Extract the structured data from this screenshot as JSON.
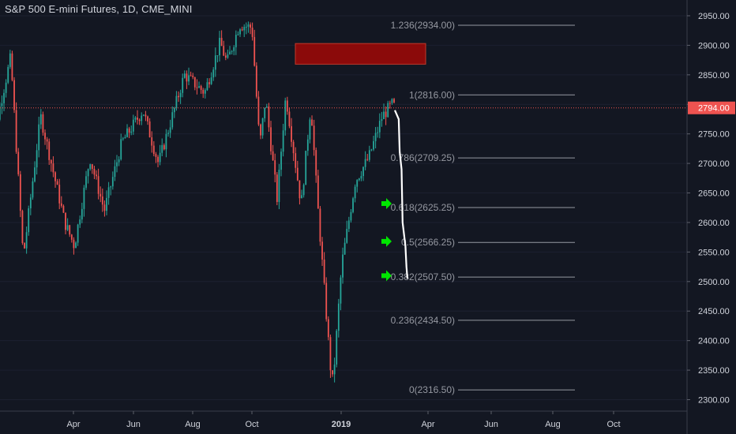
{
  "header": {
    "title": "S&P 500 E-mini Futures, 1D, CME_MINI"
  },
  "colors": {
    "background": "#131722",
    "up": "#26a69a",
    "down": "#ef5350",
    "text": "#d1d4dc",
    "fib_line": "#9598a1",
    "fib_label": "#9598a1",
    "price_line": "#ef5350",
    "target_box": "#8b0a0a",
    "arrow": "#00e600",
    "projection": "#ffffff"
  },
  "chart_data": {
    "type": "candlestick",
    "title": "S&P 500 E-mini Futures, 1D, CME_MINI",
    "x_tick_labels": [
      "Apr",
      "Jun",
      "Aug",
      "Oct",
      "2019",
      "Apr",
      "Jun",
      "Aug",
      "Oct"
    ],
    "y_tick_labels": [
      "2950.00",
      "2900.00",
      "2850.00",
      "2800.00",
      "2750.00",
      "2700.00",
      "2650.00",
      "2600.00",
      "2550.00",
      "2500.00",
      "2450.00",
      "2400.00",
      "2350.00",
      "2300.00"
    ],
    "ylim": [
      2290,
      2965
    ],
    "last_price": 2794.0,
    "last_price_label": "2794.00",
    "price_path": [
      [
        "2018-01-02",
        2700
      ],
      [
        "2018-01-26",
        2880
      ],
      [
        "2018-02-08",
        2540
      ],
      [
        "2018-02-26",
        2780
      ],
      [
        "2018-03-23",
        2600
      ],
      [
        "2018-04-02",
        2560
      ],
      [
        "2018-04-18",
        2710
      ],
      [
        "2018-05-03",
        2620
      ],
      [
        "2018-05-21",
        2735
      ],
      [
        "2018-06-12",
        2790
      ],
      [
        "2018-06-28",
        2700
      ],
      [
        "2018-07-25",
        2850
      ],
      [
        "2018-08-15",
        2820
      ],
      [
        "2018-08-31",
        2905
      ],
      [
        "2018-09-07",
        2870
      ],
      [
        "2018-09-20",
        2935
      ],
      [
        "2018-10-03",
        2930
      ],
      [
        "2018-10-11",
        2730
      ],
      [
        "2018-10-17",
        2810
      ],
      [
        "2018-10-29",
        2640
      ],
      [
        "2018-11-07",
        2815
      ],
      [
        "2018-11-23",
        2630
      ],
      [
        "2018-12-03",
        2800
      ],
      [
        "2018-12-10",
        2630
      ],
      [
        "2018-12-24",
        2340
      ],
      [
        "2018-12-26",
        2330
      ],
      [
        "2019-01-04",
        2530
      ],
      [
        "2019-01-18",
        2670
      ],
      [
        "2019-02-01",
        2710
      ],
      [
        "2019-02-15",
        2780
      ],
      [
        "2019-02-25",
        2800
      ],
      [
        "2019-03-01",
        2794
      ]
    ],
    "fib_levels": [
      {
        "label": "1.236(2934.00)",
        "value": 2934.0
      },
      {
        "label": "1(2816.00)",
        "value": 2816.0
      },
      {
        "label": "0.786(2709.25)",
        "value": 2709.25
      },
      {
        "label": "0.618(2625.25)",
        "value": 2625.25
      },
      {
        "label": "0.5(2566.25)",
        "value": 2566.25
      },
      {
        "label": "0.382(2507.50)",
        "value": 2507.5
      },
      {
        "label": "0.236(2434.50)",
        "value": 2434.5
      },
      {
        "label": "0(2316.50)",
        "value": 2316.5
      }
    ],
    "target_zone": {
      "from": "2018-11-01",
      "to": "2019-03-15",
      "top": 2903,
      "bottom": 2868
    },
    "projection": [
      [
        "2019-02-28",
        2790
      ],
      [
        "2019-03-04",
        2775
      ],
      [
        "2019-03-05",
        2720
      ],
      [
        "2019-03-07",
        2690
      ],
      [
        "2019-03-08",
        2600
      ],
      [
        "2019-03-11",
        2560
      ],
      [
        "2019-03-12",
        2525
      ],
      [
        "2019-03-13",
        2505
      ]
    ],
    "arrows": [
      {
        "date": "2019-02-05",
        "value": 2632
      },
      {
        "date": "2019-02-05",
        "value": 2568
      },
      {
        "date": "2019-02-05",
        "value": 2510
      }
    ]
  }
}
